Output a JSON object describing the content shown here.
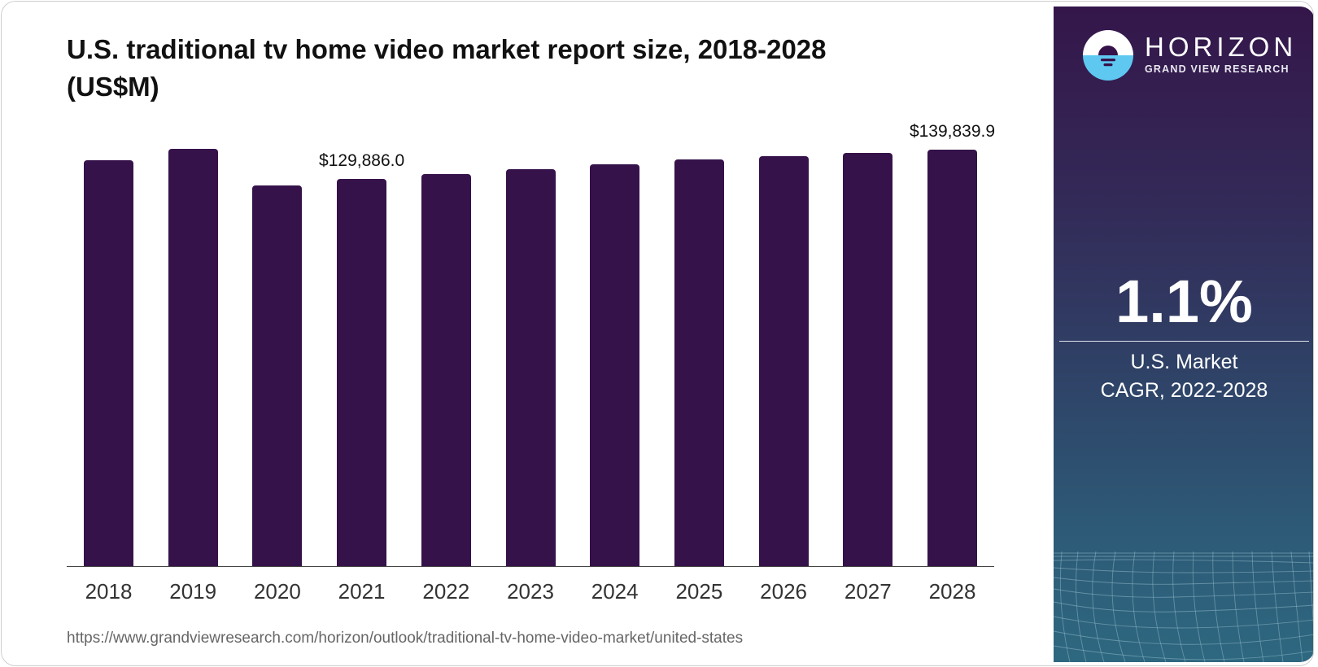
{
  "title": {
    "line1": "U.S. traditional tv home video market report size, 2018-2028",
    "line2": "(US$M)"
  },
  "source_url": "https://www.grandviewresearch.com/horizon/outlook/traditional-tv-home-video-market/united-states",
  "brand": {
    "name": "HORIZON",
    "subtitle": "GRAND VIEW RESEARCH",
    "logo_icon": "sun-over-water-logo-icon"
  },
  "highlight": {
    "value": "1.1%",
    "label_line1": "U.S. Market",
    "label_line2": "CAGR, 2022-2028"
  },
  "colors": {
    "bar": "#36124a",
    "panel_top": "#34164a",
    "panel_bottom": "#2e6880",
    "logo_blue": "#5ec8f0"
  },
  "chart_data": {
    "type": "bar",
    "title": "U.S. traditional tv home video market report size, 2018-2028 (US$M)",
    "xlabel": "",
    "ylabel": "US$M",
    "categories": [
      "2018",
      "2019",
      "2020",
      "2021",
      "2022",
      "2023",
      "2024",
      "2025",
      "2026",
      "2027",
      "2028"
    ],
    "values": [
      136300,
      140100,
      127800,
      129886.0,
      131600,
      133300,
      134900,
      136500,
      137600,
      138700,
      139839.9
    ],
    "data_labels": [
      {
        "category": "2021",
        "text": "$129,886.0"
      },
      {
        "category": "2028",
        "text": "$139,839.9"
      }
    ],
    "ylim": [
      0,
      140100
    ],
    "grid": false,
    "legend": "none",
    "y_axis_visible": false
  }
}
